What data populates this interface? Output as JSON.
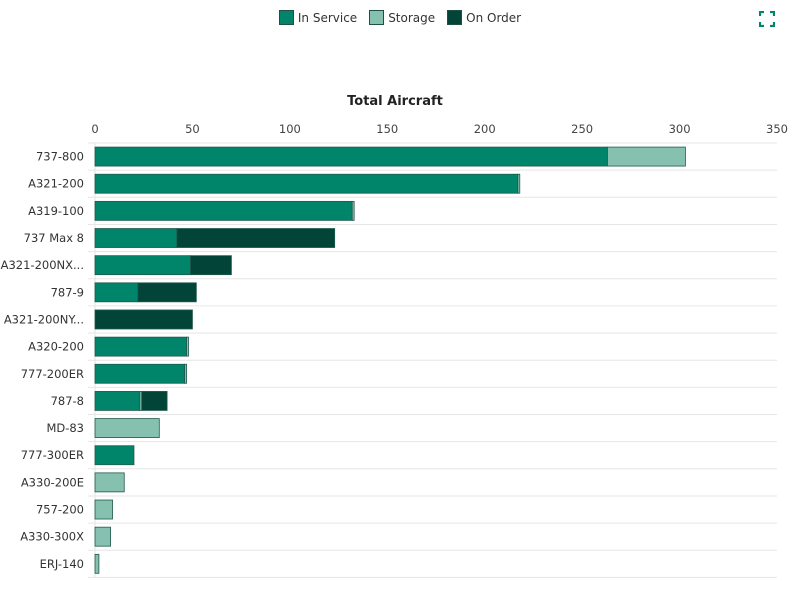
{
  "legend": [
    {
      "label": "In Service",
      "color": "#00856a"
    },
    {
      "label": "Storage",
      "color": "#86c0ae"
    },
    {
      "label": "On Order",
      "color": "#024437"
    }
  ],
  "expand_icon": "expand-icon",
  "chart_data": {
    "type": "bar",
    "orientation": "horizontal",
    "stacked": true,
    "title": "Total Aircraft",
    "xlim": [
      0,
      350
    ],
    "xticks": [
      0,
      50,
      100,
      150,
      200,
      250,
      300,
      350
    ],
    "xaxis_position": "top",
    "legend_position": "top",
    "grid": true,
    "categories": [
      "737-800",
      "A321-200",
      "A319-100",
      "737 Max 8",
      "A321-200NX...",
      "787-9",
      "A321-200NY...",
      "A320-200",
      "777-200ER",
      "787-8",
      "MD-83",
      "777-300ER",
      "A330-200E",
      "757-200",
      "A330-300X",
      "ERJ-140"
    ],
    "series": [
      {
        "name": "In Service",
        "color": "#00856a",
        "values": [
          263,
          217,
          132,
          42,
          49,
          22,
          0,
          47,
          46,
          23,
          0,
          20,
          0,
          0,
          0,
          0
        ]
      },
      {
        "name": "Storage",
        "color": "#86c0ae",
        "values": [
          40,
          1,
          1,
          0,
          0,
          0,
          0,
          1,
          1,
          1,
          33,
          0,
          15,
          9,
          8,
          2
        ]
      },
      {
        "name": "On Order",
        "color": "#024437",
        "values": [
          0,
          0,
          0,
          81,
          21,
          30,
          50,
          0,
          0,
          13,
          0,
          0,
          0,
          0,
          0,
          0
        ]
      }
    ]
  }
}
